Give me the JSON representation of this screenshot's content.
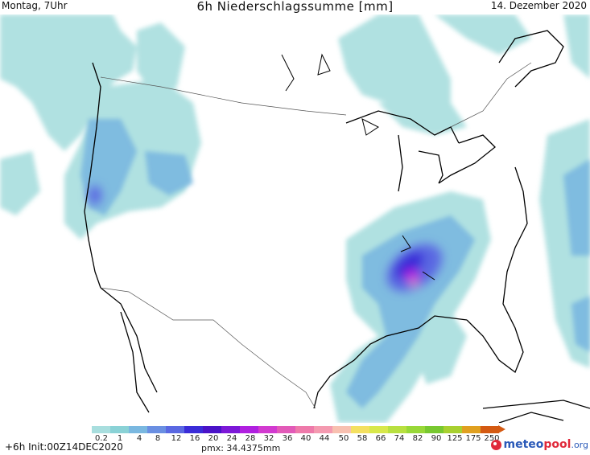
{
  "header": {
    "day_time": "Montag, 7Uhr",
    "title": "6h Niederschlagssumme [mm]",
    "date": "14. Dezember 2020"
  },
  "legend": {
    "labels": [
      "0.2",
      "1",
      "4",
      "8",
      "12",
      "16",
      "20",
      "24",
      "28",
      "32",
      "36",
      "40",
      "44",
      "50",
      "58",
      "66",
      "74",
      "82",
      "90",
      "125",
      "175",
      "250"
    ],
    "colors": [
      "#a8dede",
      "#8ad2d6",
      "#7ab8e0",
      "#6a8fe2",
      "#5a68e2",
      "#3a2cd8",
      "#4a12c8",
      "#7c18d8",
      "#b020e0",
      "#d23ad0",
      "#e25ab8",
      "#ee7aaa",
      "#f49ab0",
      "#f8c0b0",
      "#f4e060",
      "#d8e84a",
      "#b8e040",
      "#98d838",
      "#78c830",
      "#a8d030",
      "#e0a020",
      "#d45a12"
    ]
  },
  "footer": {
    "forecast_hour": "+6h",
    "init": "Init:00Z14DEC2020",
    "pmx": "pmx: 34.4375mm",
    "brand_prefix": "meteo",
    "brand_suffix": "pool",
    "brand_tld": ".org"
  }
}
